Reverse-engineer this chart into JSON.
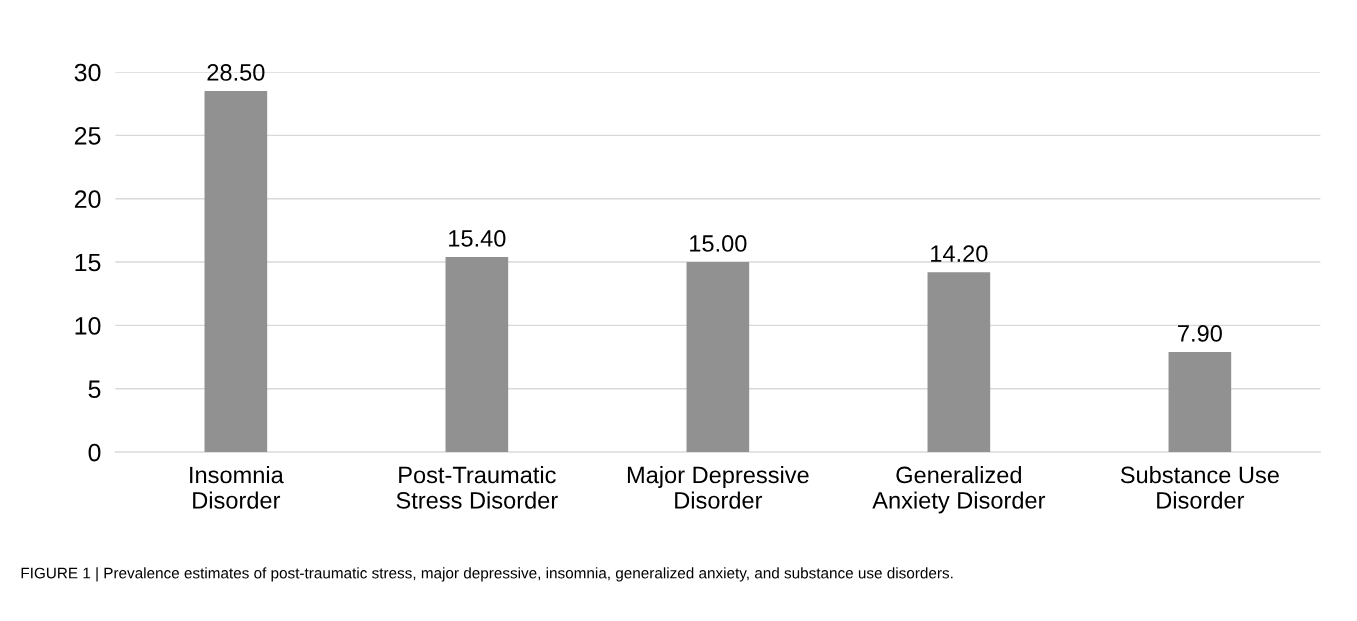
{
  "chart_data": {
    "type": "bar",
    "categories": [
      "Insomnia\nDisorder",
      "Post-Traumatic\nStress Disorder",
      "Major Depressive\nDisorder",
      "Generalized\nAnxiety Disorder",
      "Substance Use\nDisorder"
    ],
    "values": [
      28.5,
      15.4,
      15.0,
      14.2,
      7.9
    ],
    "value_labels": [
      "28.50",
      "15.40",
      "15.00",
      "14.20",
      "7.90"
    ],
    "color": "#919191",
    "ylim": [
      0,
      30
    ],
    "yticks": [
      0,
      5,
      10,
      15,
      20,
      25,
      30
    ],
    "grid": "y",
    "annotations": [
      "FIGURE 1 | Prevalence estimates of post-traumatic stress, major depressive, insomnia, generalized anxiety, and substance use disorders."
    ]
  }
}
